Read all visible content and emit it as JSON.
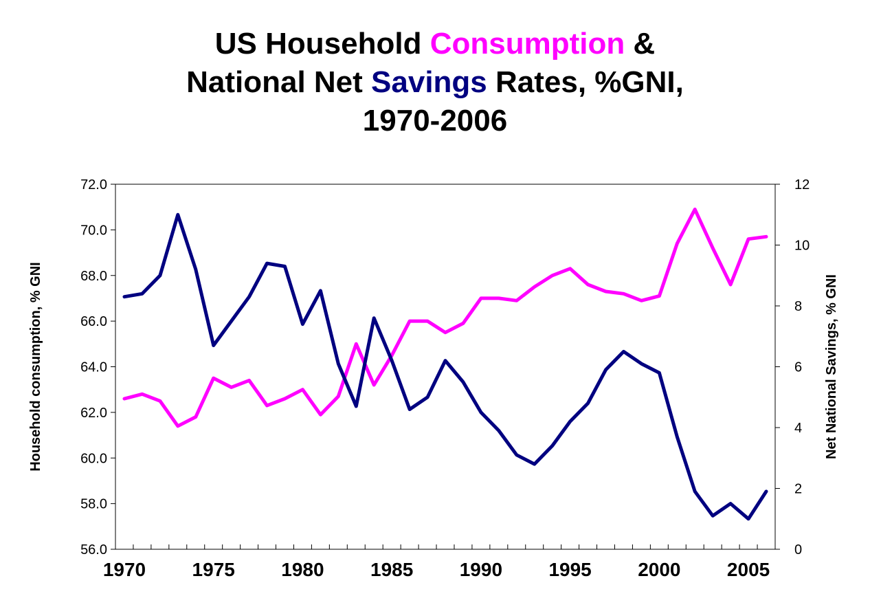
{
  "title": {
    "parts": [
      {
        "text": "US Household ",
        "color": "#000000"
      },
      {
        "text": "Consumption",
        "color": "#ff00ff"
      },
      {
        "text": " &",
        "color": "#000000"
      },
      {
        "break": true
      },
      {
        "text": "National Net ",
        "color": "#000000"
      },
      {
        "text": "Savings",
        "color": "#000080"
      },
      {
        "text": " Rates, %GNI,",
        "color": "#000000"
      },
      {
        "break": true
      },
      {
        "text": "1970-2006",
        "color": "#000000"
      }
    ]
  },
  "chart_data": {
    "type": "line",
    "title": "US Household Consumption & National Net Savings Rates, %GNI, 1970-2006",
    "x": [
      1970,
      1971,
      1972,
      1973,
      1974,
      1975,
      1976,
      1977,
      1978,
      1979,
      1980,
      1981,
      1982,
      1983,
      1984,
      1985,
      1986,
      1987,
      1988,
      1989,
      1990,
      1991,
      1992,
      1993,
      1994,
      1995,
      1996,
      1997,
      1998,
      1999,
      2000,
      2001,
      2002,
      2003,
      2004,
      2005,
      2006
    ],
    "xlim": [
      1969.5,
      2006.5
    ],
    "x_tick_labels": [
      "1970",
      "1975",
      "1980",
      "1985",
      "1990",
      "1995",
      "2000",
      "2005"
    ],
    "ylabel_left": "Household consumption, % GNI",
    "ylim_left": [
      56.0,
      72.0
    ],
    "y_ticks_left": [
      "56.0",
      "58.0",
      "60.0",
      "62.0",
      "64.0",
      "66.0",
      "68.0",
      "70.0",
      "72.0"
    ],
    "ylabel_right": "Net National Savings, % GNI",
    "ylim_right": [
      0,
      12
    ],
    "y_ticks_right": [
      "0",
      "2",
      "4",
      "6",
      "8",
      "10",
      "12"
    ],
    "grid": false,
    "series": [
      {
        "axis": "left",
        "color": "#ff00ff",
        "values": [
          62.6,
          62.8,
          62.5,
          61.4,
          61.8,
          63.5,
          63.1,
          63.4,
          62.3,
          62.6,
          63.0,
          61.9,
          62.7,
          65.0,
          63.2,
          64.5,
          66.0,
          66.0,
          65.5,
          65.9,
          67.0,
          67.0,
          66.9,
          67.5,
          68.0,
          68.3,
          67.6,
          67.3,
          67.2,
          66.9,
          67.1,
          69.4,
          70.9,
          69.2,
          67.6,
          69.6,
          69.7
        ]
      },
      {
        "axis": "right",
        "color": "#000080",
        "values": [
          8.3,
          8.4,
          9.0,
          11.0,
          9.2,
          6.7,
          7.5,
          8.3,
          9.4,
          9.3,
          7.4,
          8.5,
          6.1,
          4.7,
          7.6,
          6.2,
          4.6,
          5.0,
          6.2,
          5.5,
          4.5,
          3.9,
          3.1,
          2.8,
          3.4,
          4.2,
          4.8,
          5.9,
          6.5,
          6.1,
          5.8,
          3.7,
          1.9,
          1.1,
          1.5,
          1.0,
          1.9
        ]
      }
    ]
  }
}
